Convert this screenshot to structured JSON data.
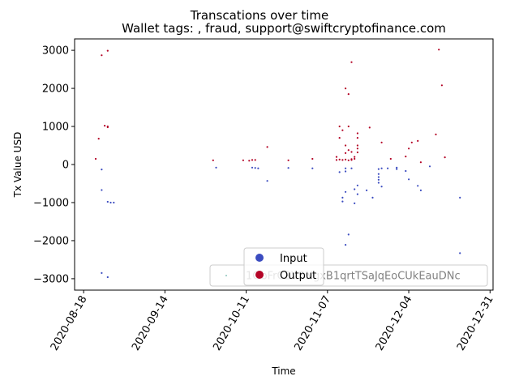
{
  "chart_data": {
    "type": "scatter",
    "title": "Transcations over time",
    "subtitle": "Wallet tags: , fraud, support@swiftcryptofinance.com",
    "xlabel": "Time",
    "ylabel": "Tx Value USD",
    "x_range": [
      "2020-08-15",
      "2021-01-01"
    ],
    "ylim": [
      -3300,
      3300
    ],
    "x_ticks": [
      "2020-08-18",
      "2020-09-14",
      "2020-10-11",
      "2020-11-07",
      "2020-12-04",
      "2020-12-31"
    ],
    "y_ticks": [
      -3000,
      -2000,
      -1000,
      0,
      1000,
      2000,
      3000
    ],
    "y_tick_labels": [
      "−3000",
      "−2000",
      "−1000",
      "0",
      "1000",
      "2000",
      "3000"
    ],
    "grid": false,
    "legend": {
      "placement": "bottom-center",
      "entries": [
        {
          "label": "Input",
          "color": "#3b4cc0"
        },
        {
          "label": "Output",
          "color": "#b40426"
        }
      ]
    },
    "legend_wallet": {
      "placement": "bottom-right",
      "label": "1GbFrCBV5NgxB1qrtTSaJqEoCUkEauDNc",
      "color": "#3d9c8f"
    },
    "series": [
      {
        "name": "Input",
        "color": "#3b4cc0",
        "points": [
          [
            "2020-08-24",
            -130
          ],
          [
            "2020-08-24",
            -670
          ],
          [
            "2020-08-24",
            -2850
          ],
          [
            "2020-08-26",
            -980
          ],
          [
            "2020-08-26",
            -2960
          ],
          [
            "2020-08-27",
            -1000
          ],
          [
            "2020-08-28",
            -1000
          ],
          [
            "2020-10-01",
            -80
          ],
          [
            "2020-10-13",
            -80
          ],
          [
            "2020-10-14",
            -90
          ],
          [
            "2020-10-15",
            -100
          ],
          [
            "2020-10-18",
            -430
          ],
          [
            "2020-10-25",
            -90
          ],
          [
            "2020-11-02",
            -100
          ],
          [
            "2020-11-11",
            -200
          ],
          [
            "2020-11-12",
            -970
          ],
          [
            "2020-11-12",
            -870
          ],
          [
            "2020-11-13",
            -100
          ],
          [
            "2020-11-13",
            -180
          ],
          [
            "2020-11-13",
            -720
          ],
          [
            "2020-11-13",
            -2110
          ],
          [
            "2020-11-14",
            -1840
          ],
          [
            "2020-11-15",
            -100
          ],
          [
            "2020-11-16",
            -650
          ],
          [
            "2020-11-16",
            -1020
          ],
          [
            "2020-11-17",
            -550
          ],
          [
            "2020-11-17",
            -780
          ],
          [
            "2020-11-20",
            -680
          ],
          [
            "2020-11-22",
            -870
          ],
          [
            "2020-11-24",
            -120
          ],
          [
            "2020-11-24",
            -250
          ],
          [
            "2020-11-24",
            -330
          ],
          [
            "2020-11-24",
            -400
          ],
          [
            "2020-11-24",
            -480
          ],
          [
            "2020-11-25",
            -100
          ],
          [
            "2020-11-25",
            -580
          ],
          [
            "2020-11-27",
            -100
          ],
          [
            "2020-11-30",
            -120
          ],
          [
            "2020-11-30",
            -80
          ],
          [
            "2020-12-03",
            -170
          ],
          [
            "2020-12-04",
            -390
          ],
          [
            "2020-12-07",
            -560
          ],
          [
            "2020-12-08",
            -680
          ],
          [
            "2020-12-11",
            -50
          ],
          [
            "2020-12-21",
            -870
          ],
          [
            "2020-12-21",
            -2330
          ]
        ]
      },
      {
        "name": "Output",
        "color": "#b40426",
        "points": [
          [
            "2020-08-22",
            150
          ],
          [
            "2020-08-23",
            680
          ],
          [
            "2020-08-24",
            2870
          ],
          [
            "2020-08-25",
            1020
          ],
          [
            "2020-08-26",
            2990
          ],
          [
            "2020-08-26",
            980
          ],
          [
            "2020-08-26",
            1000
          ],
          [
            "2020-09-30",
            110
          ],
          [
            "2020-10-10",
            110
          ],
          [
            "2020-10-12",
            100
          ],
          [
            "2020-10-13",
            120
          ],
          [
            "2020-10-14",
            120
          ],
          [
            "2020-10-18",
            460
          ],
          [
            "2020-10-25",
            110
          ],
          [
            "2020-11-02",
            150
          ],
          [
            "2020-11-10",
            200
          ],
          [
            "2020-11-10",
            120
          ],
          [
            "2020-11-11",
            1000
          ],
          [
            "2020-11-11",
            700
          ],
          [
            "2020-11-11",
            130
          ],
          [
            "2020-11-12",
            900
          ],
          [
            "2020-11-12",
            120
          ],
          [
            "2020-11-13",
            2000
          ],
          [
            "2020-11-13",
            500
          ],
          [
            "2020-11-13",
            300
          ],
          [
            "2020-11-13",
            130
          ],
          [
            "2020-11-14",
            1000
          ],
          [
            "2020-11-14",
            1850
          ],
          [
            "2020-11-14",
            380
          ],
          [
            "2020-11-14",
            110
          ],
          [
            "2020-11-15",
            2690
          ],
          [
            "2020-11-15",
            330
          ],
          [
            "2020-11-15",
            140
          ],
          [
            "2020-11-15",
            120
          ],
          [
            "2020-11-16",
            200
          ],
          [
            "2020-11-16",
            150
          ],
          [
            "2020-11-17",
            820
          ],
          [
            "2020-11-17",
            700
          ],
          [
            "2020-11-17",
            500
          ],
          [
            "2020-11-17",
            420
          ],
          [
            "2020-11-17",
            320
          ],
          [
            "2020-11-21",
            970
          ],
          [
            "2020-11-25",
            580
          ],
          [
            "2020-11-28",
            150
          ],
          [
            "2020-12-03",
            210
          ],
          [
            "2020-12-04",
            420
          ],
          [
            "2020-12-05",
            580
          ],
          [
            "2020-12-07",
            620
          ],
          [
            "2020-12-08",
            60
          ],
          [
            "2020-12-13",
            790
          ],
          [
            "2020-12-14",
            3020
          ],
          [
            "2020-12-15",
            2080
          ],
          [
            "2020-12-16",
            190
          ]
        ]
      }
    ]
  }
}
